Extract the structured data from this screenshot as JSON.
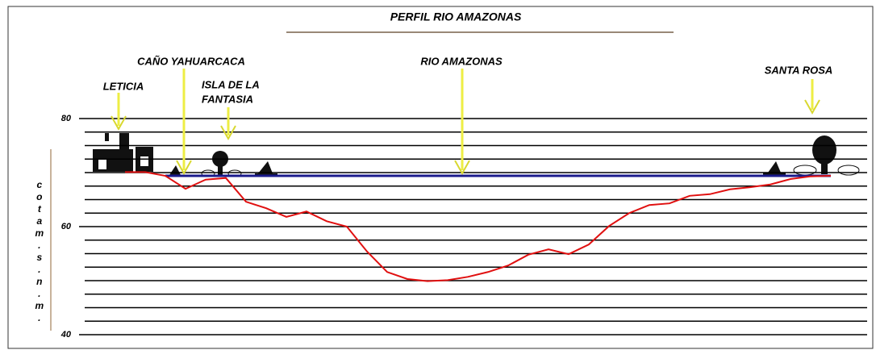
{
  "chart_data": {
    "type": "line",
    "title": "PERFIL RIO AMAZONAS",
    "ylabel": "cotam.s.n.m.",
    "annotations": [
      "LETICIA",
      "CAÑO YAHUARCACA",
      "ISLA DE LA",
      "FANTASIA",
      "RIO AMAZONAS",
      "SANTA ROSA"
    ],
    "ylim": [
      40,
      80
    ],
    "yticks": [
      40,
      60,
      80
    ],
    "ygrid": [
      40,
      42.5,
      45,
      47.5,
      50,
      52.5,
      55,
      57.5,
      60,
      62.5,
      65,
      67.5,
      70,
      72.5,
      75,
      77.5,
      80
    ],
    "water_level": 69.4,
    "water_color": "#1a1a8c",
    "series": [
      {
        "color": "#e01010",
        "values": [
          70.1,
          70.1,
          69.4,
          67.0,
          68.7,
          69.0,
          64.6,
          63.4,
          61.8,
          62.8,
          61.0,
          60.0,
          55.4,
          51.6,
          50.3,
          49.9,
          50.1,
          50.7,
          51.6,
          52.8,
          54.8,
          55.8,
          54.9,
          56.7,
          60.1,
          62.5,
          64.0,
          64.3,
          65.7,
          66.0,
          66.9,
          67.3,
          67.8,
          68.8,
          69.3,
          69.4
        ]
      }
    ]
  }
}
